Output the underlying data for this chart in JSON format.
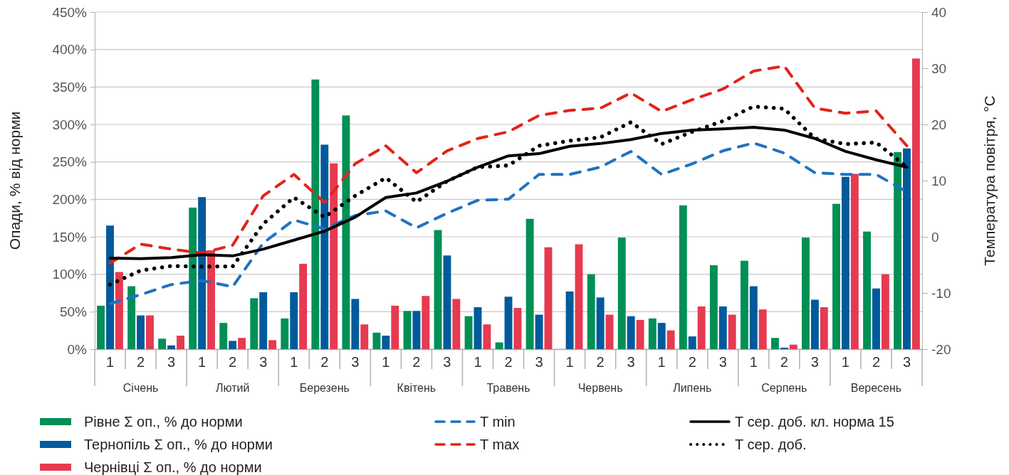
{
  "chart_data": {
    "type": "bar",
    "ylabel": "Опади, % від норми",
    "y2label": "Температура повітря, °C",
    "categories": [
      "1",
      "2",
      "3",
      "1",
      "2",
      "3",
      "1",
      "2",
      "3",
      "1",
      "2",
      "3",
      "1",
      "2",
      "3",
      "1",
      "2",
      "3",
      "1",
      "2",
      "3",
      "1",
      "2",
      "3",
      "1",
      "2",
      "3"
    ],
    "annotations": [
      "Січень",
      "Лютий",
      "Березень",
      "Квітень",
      "Травень",
      "Червень",
      "Липень",
      "Серпень",
      "Вересень"
    ],
    "series": [
      {
        "name": "Рівне Σ оп., % до норми",
        "color": "#008f55",
        "values": [
          58,
          84,
          14,
          189,
          35,
          68,
          41,
          360,
          312,
          22,
          51,
          159,
          44,
          9,
          174,
          0,
          100,
          149,
          41,
          192,
          112,
          118,
          15,
          149,
          194,
          157,
          263
        ]
      },
      {
        "name": "Тернопіль Σ оп., % до норми",
        "color": "#005a9c",
        "values": [
          165,
          45,
          5,
          203,
          11,
          76,
          76,
          273,
          67,
          18,
          51,
          125,
          56,
          70,
          46,
          77,
          69,
          44,
          35,
          17,
          57,
          84,
          2,
          66,
          230,
          81,
          268
        ]
      },
      {
        "name": "Чернівці Σ оп., % до норми",
        "color": "#e63a50",
        "values": [
          103,
          45,
          18,
          132,
          15,
          12,
          114,
          248,
          33,
          58,
          71,
          67,
          33,
          55,
          136,
          140,
          46,
          39,
          25,
          57,
          46,
          53,
          6,
          56,
          234,
          100,
          388
        ]
      },
      {
        "name": "T min",
        "type": "line",
        "axis": "y2",
        "line_style": "dashed",
        "color": "#1f72c1",
        "values": [
          -11.9,
          -10.3,
          -8.5,
          -7.8,
          -8.9,
          -1.1,
          3,
          1.4,
          3.8,
          4.6,
          1.6,
          4.2,
          6.5,
          6.7,
          11.1,
          11.1,
          12.4,
          15.2,
          11.1,
          13,
          15.3,
          16.7,
          14.9,
          11.4,
          11.1,
          11.1,
          8
        ]
      },
      {
        "name": "T max",
        "type": "line",
        "axis": "y2",
        "line_style": "dashed",
        "color": "#e2231a",
        "values": [
          -4.7,
          -1.3,
          -2.2,
          -2.9,
          -1.5,
          7.3,
          11.1,
          6.1,
          13,
          16.2,
          11.4,
          15.3,
          17.5,
          18.7,
          21.6,
          22.5,
          22.9,
          25.6,
          22.3,
          24.4,
          26.3,
          29.5,
          30.4,
          22.9,
          22,
          22.4,
          16.2
        ]
      },
      {
        "name": "T сер. доб. кл. норма 15",
        "type": "line",
        "axis": "y2",
        "line_style": "solid",
        "color": "#000000",
        "values": [
          -3.8,
          -3.9,
          -3.7,
          -3.2,
          -3.4,
          -2.2,
          -0.6,
          1,
          3.5,
          7,
          7.8,
          9.9,
          12.4,
          14.4,
          14.8,
          16.1,
          16.6,
          17.3,
          18.4,
          19,
          19.2,
          19.5,
          19,
          17.5,
          15.2,
          13.7,
          12.4
        ]
      },
      {
        "name": "T сер. доб.",
        "type": "line",
        "axis": "y2",
        "line_style": "dotted",
        "color": "#000000",
        "values": [
          -8.5,
          -6,
          -5.2,
          -5.3,
          -5.3,
          2.3,
          7,
          3.5,
          7.3,
          10.5,
          6.2,
          9.9,
          12.4,
          12.7,
          16.2,
          17.1,
          17.7,
          20.4,
          16.5,
          18.7,
          20.6,
          23.2,
          22.8,
          17.5,
          16.5,
          16.8,
          12.4
        ]
      }
    ],
    "ylim": [
      0,
      450
    ],
    "yticks": [
      {
        "value": 0,
        "label": "0%"
      },
      {
        "value": 50,
        "label": "50%"
      },
      {
        "value": 100,
        "label": "100%"
      },
      {
        "value": 150,
        "label": "150%"
      },
      {
        "value": 200,
        "label": "200%"
      },
      {
        "value": 250,
        "label": "250%"
      },
      {
        "value": 300,
        "label": "300%"
      },
      {
        "value": 350,
        "label": "350%"
      },
      {
        "value": 400,
        "label": "400%"
      },
      {
        "value": 450,
        "label": "450%"
      }
    ],
    "y2lim": [
      -20,
      40
    ],
    "y2ticks": [
      -20,
      -10,
      0,
      10,
      20,
      30,
      40
    ],
    "grid": "y",
    "legend": "bottom"
  }
}
